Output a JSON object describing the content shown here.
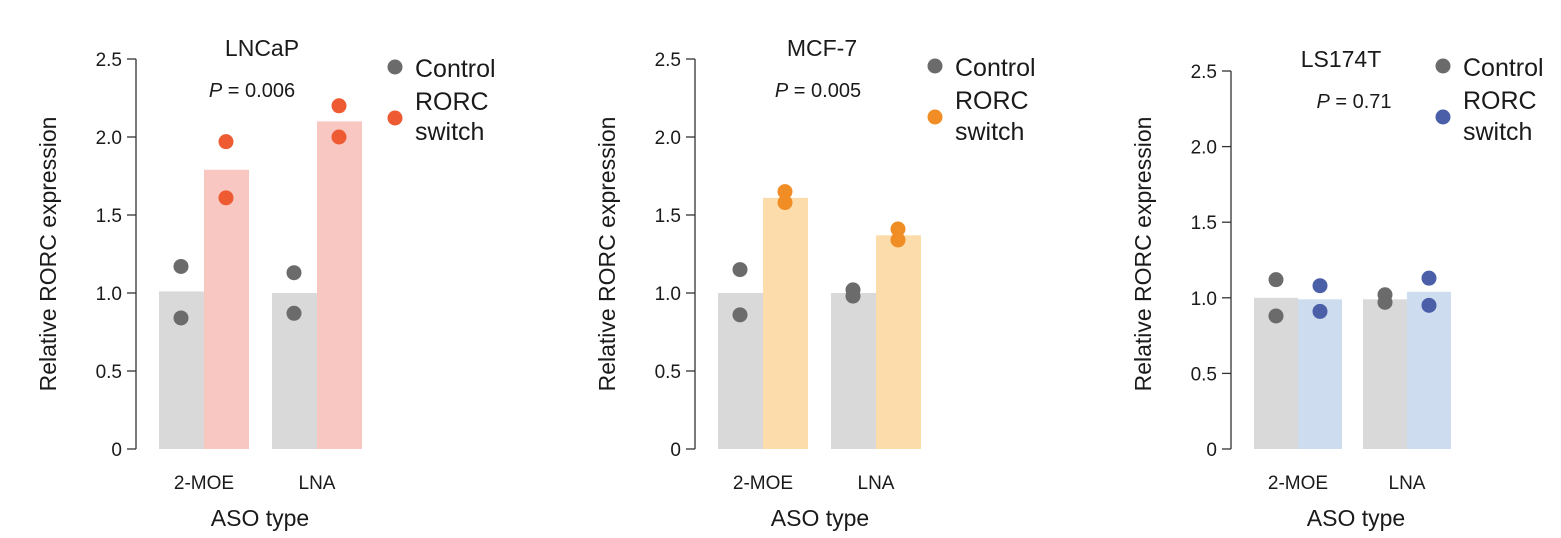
{
  "chart_data": [
    {
      "type": "bar",
      "title": "LNCaP",
      "p_label": "P",
      "p_value": " = 0.006",
      "xlabel": "ASO type",
      "ylabel": "Relative RORC expression",
      "ylim": [
        0,
        2.5
      ],
      "yticks": [
        "0",
        "0.5",
        "1.0",
        "1.5",
        "2.0",
        "2.5"
      ],
      "categories": [
        "2-MOE",
        "LNA"
      ],
      "legend": {
        "control": "Control",
        "switch_line1": "RORC",
        "switch_line2": "switch"
      },
      "colors": {
        "control_bar": "#d9d9d9",
        "control_dot": "#6b6b6b",
        "switch_bar": "#f8c7c1",
        "switch_dot": "#ee5b33"
      },
      "series": [
        {
          "name": "Control",
          "values": [
            1.01,
            1.0
          ],
          "points": [
            [
              1.17,
              0.84
            ],
            [
              1.13,
              0.87
            ]
          ]
        },
        {
          "name": "RORC switch",
          "values": [
            1.79,
            2.1
          ],
          "points": [
            [
              1.97,
              1.61
            ],
            [
              2.2,
              2.0
            ]
          ]
        }
      ]
    },
    {
      "type": "bar",
      "title": "MCF-7",
      "p_label": "P",
      "p_value": " = 0.005",
      "xlabel": "ASO type",
      "ylabel": "Relative RORC expression",
      "ylim": [
        0,
        2.5
      ],
      "yticks": [
        "0",
        "0.5",
        "1.0",
        "1.5",
        "2.0",
        "2.5"
      ],
      "categories": [
        "2-MOE",
        "LNA"
      ],
      "legend": {
        "control": "Control",
        "switch_line1": "RORC",
        "switch_line2": "switch"
      },
      "colors": {
        "control_bar": "#d9d9d9",
        "control_dot": "#6b6b6b",
        "switch_bar": "#fddcab",
        "switch_dot": "#f18d25"
      },
      "series": [
        {
          "name": "Control",
          "values": [
            1.0,
            1.0
          ],
          "points": [
            [
              1.15,
              0.86
            ],
            [
              0.98,
              1.02
            ]
          ]
        },
        {
          "name": "RORC switch",
          "values": [
            1.61,
            1.37
          ],
          "points": [
            [
              1.58,
              1.65
            ],
            [
              1.34,
              1.41
            ]
          ]
        }
      ]
    },
    {
      "type": "bar",
      "title": "LS174T",
      "p_label": "P",
      "p_value": " = 0.71",
      "xlabel": "ASO type",
      "ylabel": "Relative RORC expression",
      "ylim": [
        0,
        2.5
      ],
      "yticks": [
        "0",
        "0.5",
        "1.0",
        "1.5",
        "2.0",
        "2.5"
      ],
      "categories": [
        "2-MOE",
        "LNA"
      ],
      "legend": {
        "control": "Control",
        "switch_line1": "RORC",
        "switch_line2": "switch"
      },
      "colors": {
        "control_bar": "#d9d9d9",
        "control_dot": "#6b6b6b",
        "switch_bar": "#cddcef",
        "switch_dot": "#4a5fa8"
      },
      "series": [
        {
          "name": "Control",
          "values": [
            1.0,
            0.99
          ],
          "points": [
            [
              1.12,
              0.88
            ],
            [
              0.97,
              1.02
            ]
          ]
        },
        {
          "name": "RORC switch",
          "values": [
            0.99,
            1.04
          ],
          "points": [
            [
              1.08,
              0.91
            ],
            [
              1.13,
              0.95
            ]
          ]
        }
      ]
    }
  ]
}
